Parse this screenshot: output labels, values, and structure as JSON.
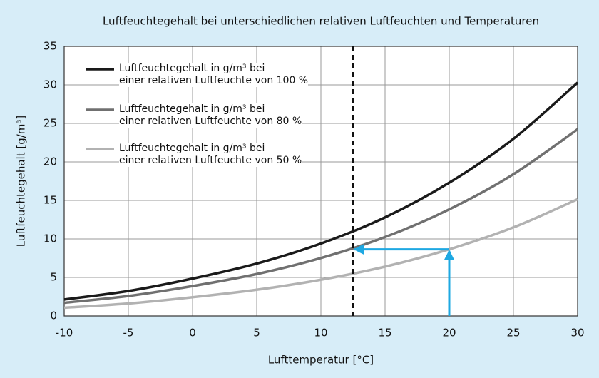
{
  "chart_data": {
    "type": "line",
    "title": "Luftfeuchtegehalt bei unterschiedlichen relativen Luftfeuchten und Temperaturen",
    "x_label": "Lufttemperatur [°C]",
    "y_label": "Luftfeuchtegehalt [g/m³]",
    "x": [
      -10,
      -5,
      0,
      5,
      10,
      15,
      20,
      25,
      30
    ],
    "series": [
      {
        "name": "Luftfeuchtegehalt in g/m³ bei\neiner relativen Luftfeuchte von 100 %",
        "color": "#1a1a1a",
        "values": [
          2.14,
          3.24,
          4.85,
          6.8,
          9.4,
          12.8,
          17.3,
          23.0,
          30.3
        ]
      },
      {
        "name": "Luftfeuchtegehalt in g/m³ bei\neiner relativen Luftfeuchte von 80 %",
        "color": "#707070",
        "values": [
          1.71,
          2.59,
          3.88,
          5.44,
          7.52,
          10.24,
          13.84,
          18.4,
          24.24
        ]
      },
      {
        "name": "Luftfeuchtegehalt in g/m³ bei\neiner relativen Luftfeuchte von 50 %",
        "color": "#b2b2b2",
        "values": [
          1.07,
          1.62,
          2.43,
          3.4,
          4.7,
          6.4,
          8.65,
          11.5,
          15.15
        ]
      }
    ],
    "xlim": [
      -10,
      30
    ],
    "xticks": [
      -10,
      -5,
      0,
      5,
      10,
      15,
      20,
      25,
      30
    ],
    "ylim": [
      0,
      35
    ],
    "yticks": [
      0,
      5,
      10,
      15,
      20,
      25,
      30,
      35
    ],
    "grid": true,
    "marker_x": 12.5,
    "arrow": {
      "x": 20,
      "y": 8.65,
      "to_x": 12.5,
      "color": "#1ea8e2"
    }
  }
}
